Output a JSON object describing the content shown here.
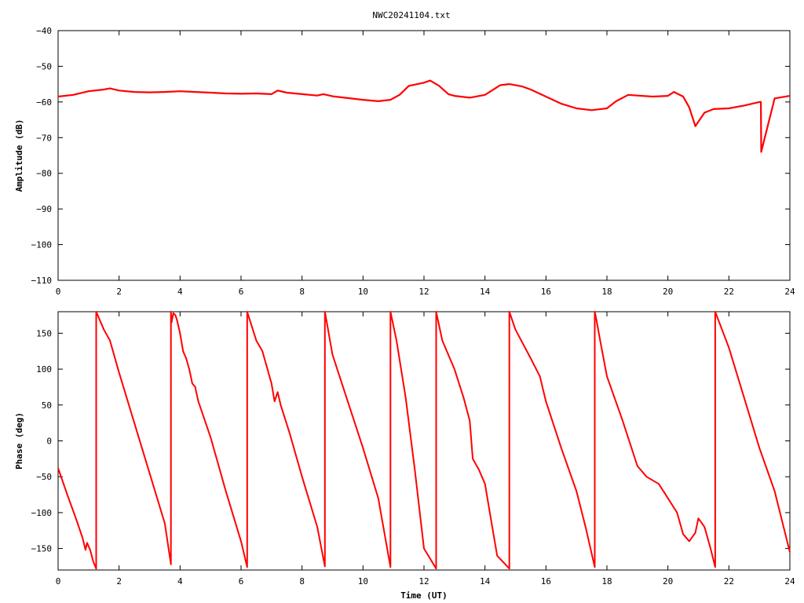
{
  "page": {
    "title": "NWC20241104.txt"
  },
  "chart_data": [
    {
      "type": "line",
      "title": "NWC20241104.txt",
      "xlabel": "",
      "ylabel": "Amplitude (dB)",
      "xlim": [
        0,
        24
      ],
      "ylim": [
        -110,
        -40
      ],
      "xticks": [
        0,
        2,
        4,
        6,
        8,
        10,
        12,
        14,
        16,
        18,
        20,
        22,
        24
      ],
      "yticks": [
        -110,
        -100,
        -90,
        -80,
        -70,
        -60,
        -50,
        -40
      ],
      "ytick_labels": [
        "−110",
        "−100",
        "−90",
        "−80",
        "−70",
        "−60",
        "−50",
        "−40"
      ],
      "grid": false,
      "color": "#ff0000",
      "series": [
        {
          "x": [
            0,
            0.5,
            1.0,
            1.5,
            1.7,
            2.0,
            2.5,
            3.0,
            3.5,
            4.0,
            4.5,
            5.0,
            5.5,
            6.0,
            6.5,
            7.0,
            7.2,
            7.5,
            8.0,
            8.5,
            8.7,
            9.0,
            9.5,
            10.0,
            10.5,
            10.9,
            11.2,
            11.5,
            12.0,
            12.2,
            12.5,
            12.8,
            13.0,
            13.5,
            14.0,
            14.5,
            14.8,
            15.2,
            15.5,
            16.0,
            16.5,
            17.0,
            17.5,
            18.0,
            18.3,
            18.7,
            19.0,
            19.5,
            20.0,
            20.2,
            20.5,
            20.7,
            20.9,
            21.2,
            21.5,
            22.0,
            22.5,
            23.0,
            23.05,
            23.06,
            23.5,
            24.0
          ],
          "y": [
            -58.5,
            -58,
            -57,
            -56.5,
            -56.2,
            -56.8,
            -57.2,
            -57.3,
            -57.2,
            -57,
            -57.2,
            -57.4,
            -57.6,
            -57.7,
            -57.6,
            -57.8,
            -56.8,
            -57.4,
            -57.8,
            -58.2,
            -57.8,
            -58.4,
            -58.9,
            -59.4,
            -59.8,
            -59.4,
            -58,
            -55.5,
            -54.6,
            -54,
            -55.5,
            -57.8,
            -58.3,
            -58.8,
            -58,
            -55.3,
            -55,
            -55.6,
            -56.5,
            -58.5,
            -60.5,
            -61.8,
            -62.3,
            -61.8,
            -59.8,
            -58,
            -58.2,
            -58.5,
            -58.3,
            -57.2,
            -58.5,
            -61.5,
            -66.8,
            -63,
            -62,
            -61.8,
            -61,
            -60,
            -60,
            -74,
            -59,
            -58.3
          ]
        }
      ]
    },
    {
      "type": "line",
      "title": "",
      "xlabel": "Time (UT)",
      "ylabel": "Phase (deg)",
      "xlim": [
        0,
        24
      ],
      "ylim": [
        -180,
        180
      ],
      "xticks": [
        0,
        2,
        4,
        6,
        8,
        10,
        12,
        14,
        16,
        18,
        20,
        22,
        24
      ],
      "yticks": [
        -150,
        -100,
        -50,
        0,
        50,
        100,
        150
      ],
      "ytick_labels": [
        "−150",
        "−100",
        "−50",
        "0",
        "50",
        "100",
        "150"
      ],
      "grid": false,
      "color": "#ff0000",
      "series": [
        {
          "x": [
            0,
            0.3,
            0.6,
            0.8,
            0.9,
            0.95,
            1.05,
            1.15,
            1.25,
            1.25,
            1.5,
            1.7,
            2.0,
            2.5,
            3.0,
            3.5,
            3.7,
            3.7,
            3.72,
            3.78,
            3.85,
            3.9,
            4.0,
            4.1,
            4.2,
            4.3,
            4.4,
            4.5,
            4.52,
            4.6,
            5.0,
            5.5,
            6.0,
            6.2,
            6.2,
            6.5,
            6.7,
            7.0,
            7.1,
            7.2,
            7.3,
            7.6,
            8.0,
            8.5,
            8.75,
            8.75,
            9.0,
            9.5,
            10.0,
            10.5,
            10.9,
            10.9,
            11.1,
            11.4,
            11.7,
            12.0,
            12.4,
            12.4,
            12.6,
            13.0,
            13.3,
            13.5,
            13.6,
            13.8,
            14.0,
            14.2,
            14.4,
            14.8,
            14.8,
            15.0,
            15.5,
            15.8,
            16.0,
            16.5,
            17.0,
            17.3,
            17.6,
            17.6,
            17.65,
            17.8,
            18.0,
            18.5,
            19.0,
            19.3,
            19.7,
            20.0,
            20.3,
            20.5,
            20.7,
            20.9,
            21.0,
            21.2,
            21.4,
            21.55,
            21.55,
            22.0,
            22.5,
            23.0,
            23.5,
            24.0
          ],
          "y": [
            -38,
            -75,
            -110,
            -135,
            -152,
            -142,
            -152,
            -168,
            -178,
            180,
            155,
            140,
            95,
            25,
            -45,
            -115,
            -172,
            180,
            165,
            178,
            175,
            168,
            150,
            125,
            115,
            100,
            80,
            75,
            70,
            55,
            5,
            -70,
            -140,
            -176,
            180,
            140,
            125,
            80,
            55,
            68,
            50,
            10,
            -50,
            -120,
            -175,
            180,
            120,
            55,
            -10,
            -80,
            -176,
            180,
            140,
            60,
            -40,
            -150,
            -178,
            180,
            140,
            100,
            60,
            28,
            -25,
            -40,
            -60,
            -110,
            -160,
            -178,
            180,
            155,
            115,
            90,
            55,
            -10,
            -70,
            -120,
            -176,
            180,
            170,
            135,
            90,
            30,
            -35,
            -50,
            -60,
            -80,
            -100,
            -130,
            -140,
            -128,
            -108,
            -120,
            -150,
            -176,
            180,
            130,
            60,
            -10,
            -70,
            -155
          ]
        }
      ]
    }
  ]
}
